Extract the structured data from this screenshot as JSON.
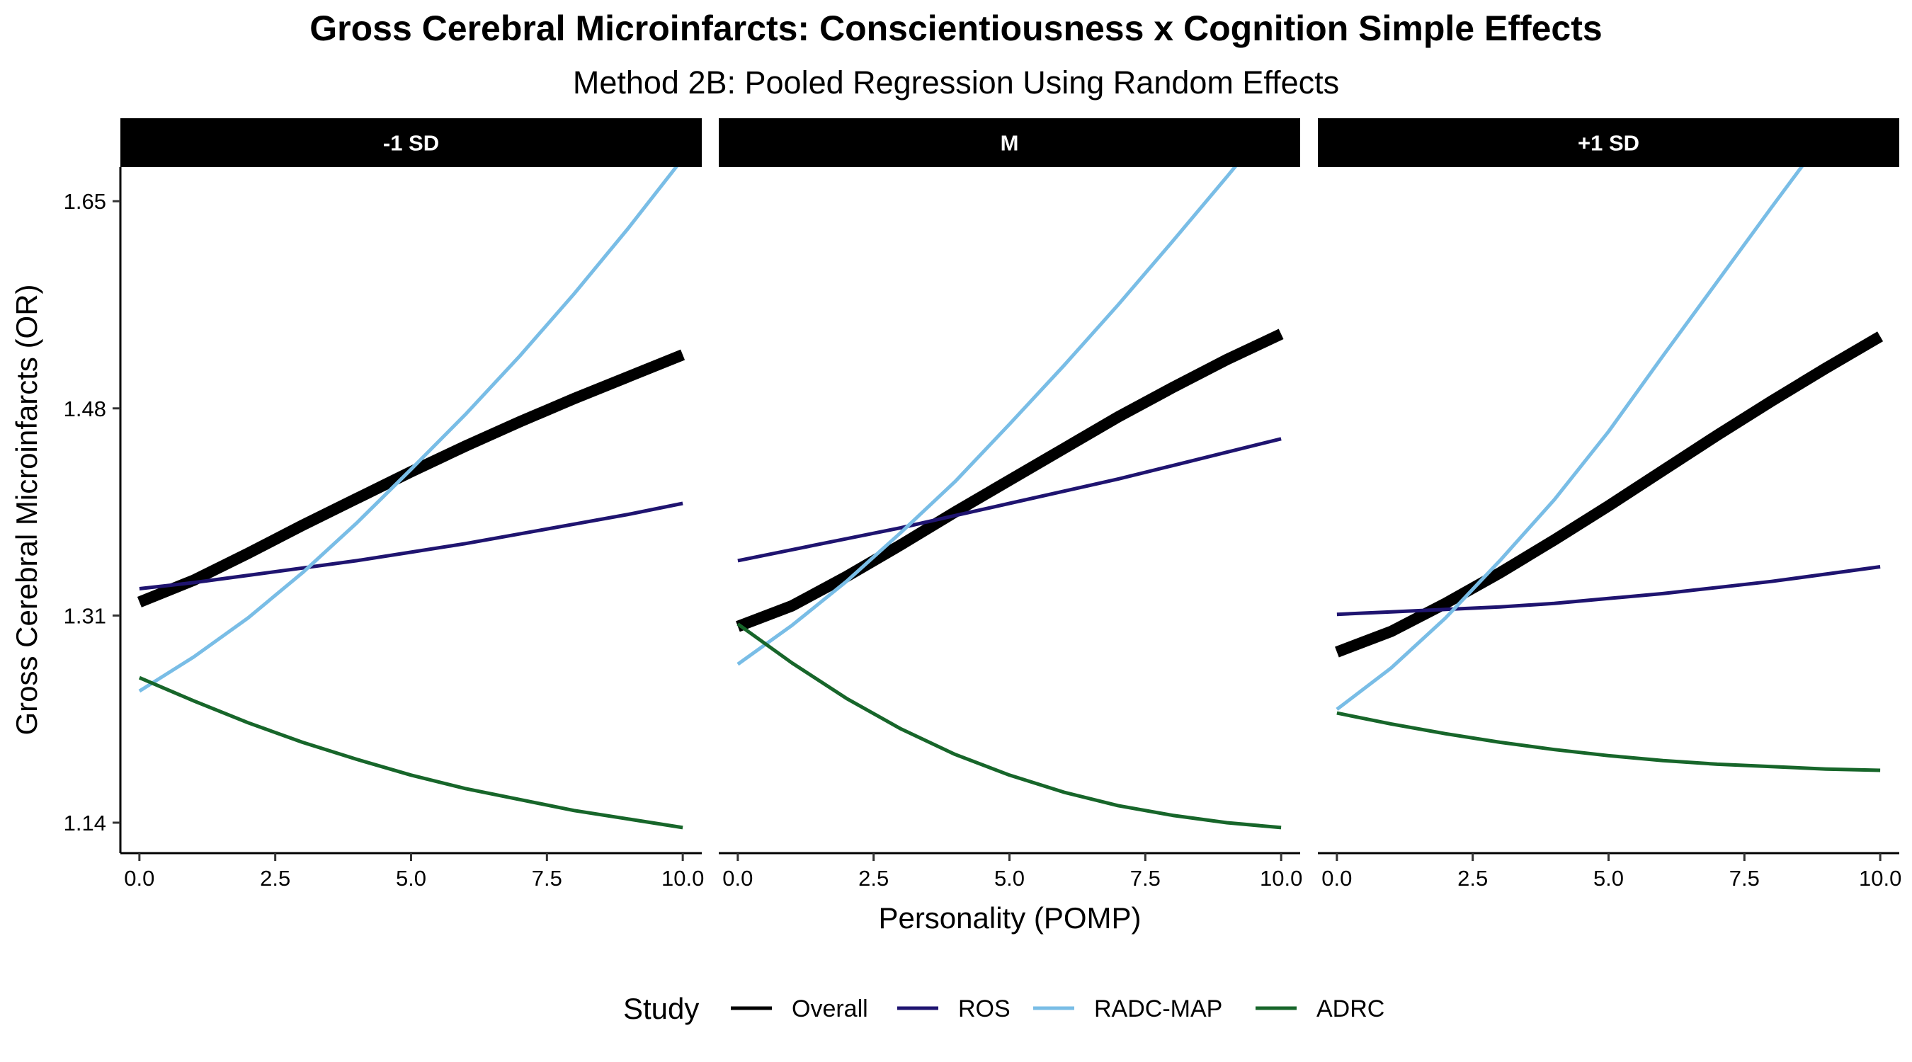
{
  "chart_data": {
    "type": "line",
    "title": "Gross Cerebral Microinfarcts: Conscientiousness x Cognition Simple Effects",
    "subtitle": "Method 2B: Pooled Regression Using Random Effects",
    "xlabel": "Personality (POMP)",
    "ylabel": "Gross Cerebral Microinfarcts (OR)",
    "xlim": [
      -0.35,
      10.35
    ],
    "ylim": [
      1.115,
      1.678
    ],
    "x_ticks": [
      0.0,
      2.5,
      5.0,
      7.5,
      10.0
    ],
    "x_tick_labels": [
      "0.0",
      "2.5",
      "5.0",
      "7.5",
      "10.0"
    ],
    "y_ticks": [
      1.14,
      1.31,
      1.48,
      1.65
    ],
    "y_tick_labels": [
      "1.14",
      "1.31",
      "1.48",
      "1.65"
    ],
    "grid": false,
    "legend": {
      "title": "Study",
      "placement": "bottom",
      "entries": [
        "Overall",
        "ROS",
        "RADC-MAP",
        "ADRC"
      ]
    },
    "colors": {
      "Overall": "#000000",
      "ROS": "#1f1470",
      "RADC-MAP": "#79bde6",
      "ADRC": "#17662a"
    },
    "x": [
      0,
      1,
      2,
      3,
      4,
      5,
      6,
      7,
      8,
      9,
      10
    ],
    "panels": [
      {
        "label": "-1 SD",
        "series": [
          {
            "name": "Overall",
            "values": [
              1.321,
              1.339,
              1.361,
              1.384,
              1.406,
              1.428,
              1.449,
              1.469,
              1.488,
              1.506,
              1.524
            ]
          },
          {
            "name": "ROS",
            "values": [
              1.332,
              1.337,
              1.343,
              1.349,
              1.355,
              1.362,
              1.369,
              1.377,
              1.385,
              1.393,
              1.402
            ]
          },
          {
            "name": "RADC-MAP",
            "values": [
              1.248,
              1.276,
              1.308,
              1.345,
              1.386,
              1.43,
              1.475,
              1.523,
              1.574,
              1.628,
              1.685
            ]
          },
          {
            "name": "ADRC",
            "values": [
              1.259,
              1.24,
              1.222,
              1.206,
              1.192,
              1.179,
              1.168,
              1.159,
              1.15,
              1.143,
              1.136
            ]
          }
        ]
      },
      {
        "label": "M",
        "series": [
          {
            "name": "Overall",
            "values": [
              1.301,
              1.318,
              1.342,
              1.368,
              1.395,
              1.421,
              1.447,
              1.473,
              1.497,
              1.52,
              1.541
            ]
          },
          {
            "name": "ROS",
            "values": [
              1.355,
              1.364,
              1.373,
              1.382,
              1.392,
              1.402,
              1.412,
              1.422,
              1.433,
              1.444,
              1.455
            ]
          },
          {
            "name": "RADC-MAP",
            "values": [
              1.27,
              1.302,
              1.338,
              1.378,
              1.42,
              1.467,
              1.515,
              1.565,
              1.617,
              1.67,
              1.724
            ]
          },
          {
            "name": "ADRC",
            "values": [
              1.303,
              1.271,
              1.242,
              1.217,
              1.196,
              1.179,
              1.165,
              1.154,
              1.146,
              1.14,
              1.136
            ]
          }
        ]
      },
      {
        "label": "+1 SD",
        "series": [
          {
            "name": "Overall",
            "values": [
              1.28,
              1.297,
              1.32,
              1.345,
              1.372,
              1.4,
              1.429,
              1.458,
              1.486,
              1.513,
              1.539
            ]
          },
          {
            "name": "ROS",
            "values": [
              1.311,
              1.313,
              1.315,
              1.317,
              1.32,
              1.324,
              1.328,
              1.333,
              1.338,
              1.344,
              1.35
            ]
          },
          {
            "name": "RADC-MAP",
            "values": [
              1.233,
              1.267,
              1.308,
              1.355,
              1.405,
              1.461,
              1.523,
              1.584,
              1.645,
              1.705,
              1.765
            ]
          },
          {
            "name": "ADRC",
            "values": [
              1.23,
              1.221,
              1.213,
              1.206,
              1.2,
              1.195,
              1.191,
              1.188,
              1.186,
              1.184,
              1.183
            ]
          }
        ]
      }
    ]
  }
}
